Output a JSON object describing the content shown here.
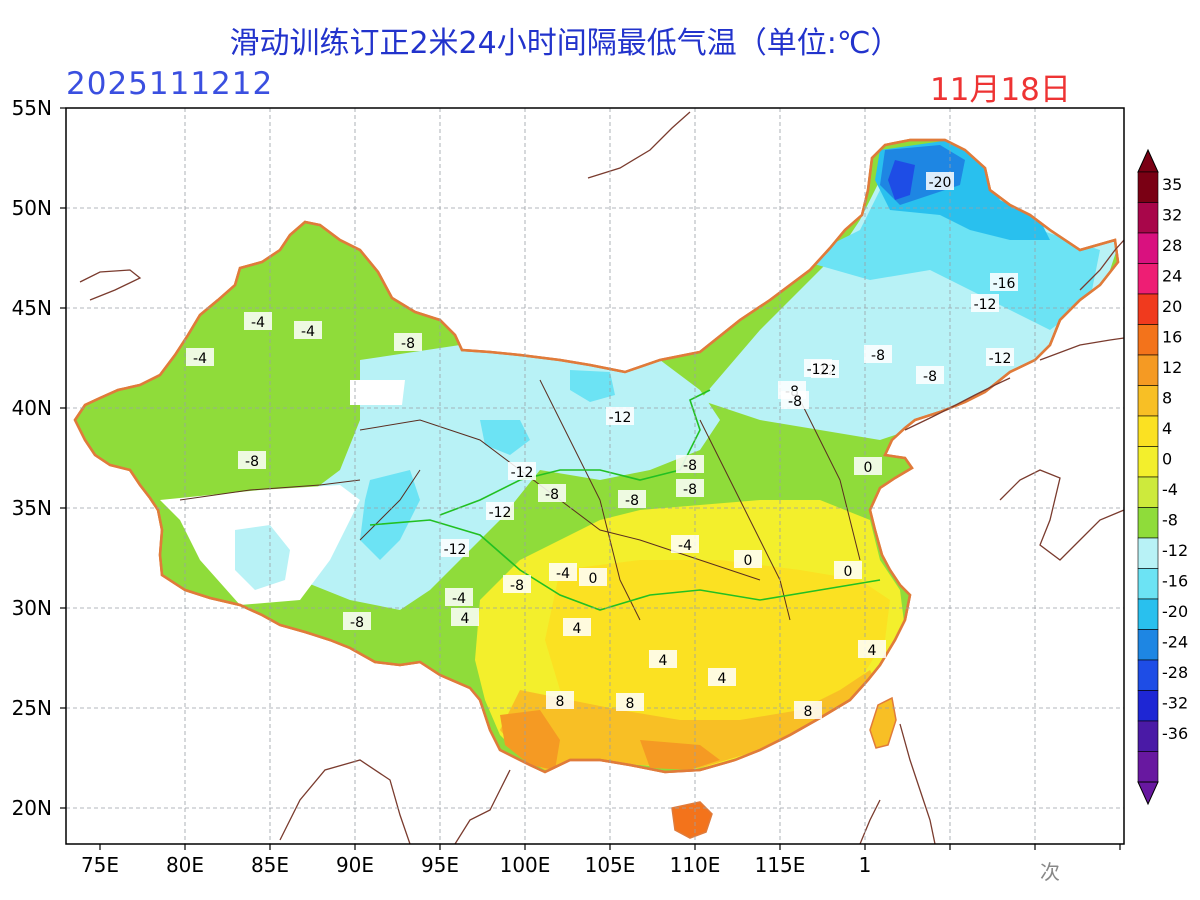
{
  "header": {
    "title": "滑动训练订正2米24小时间隔最低气温（单位:℃）",
    "run_id": "2025111212",
    "valid_date": "11月18日"
  },
  "axes": {
    "lat_labels": [
      "55N",
      "50N",
      "45N",
      "40N",
      "35N",
      "30N",
      "25N",
      "20N"
    ],
    "lon_labels": [
      "75E",
      "80E",
      "85E",
      "90E",
      "95E",
      "100E",
      "105E",
      "110E",
      "115E",
      "1"
    ]
  },
  "legend": {
    "labels": [
      "35",
      "32",
      "28",
      "24",
      "20",
      "16",
      "12",
      "8",
      "4",
      "0",
      "-4",
      "-8",
      "-12",
      "-16",
      "-20",
      "-24",
      "-28",
      "-32",
      "-36"
    ],
    "colors": [
      "#7a0014",
      "#a8064a",
      "#d9117f",
      "#ee1e74",
      "#f03a1e",
      "#f3731b",
      "#f59a23",
      "#f8bf25",
      "#fbe122",
      "#f3ef2c",
      "#cdea3c",
      "#8fdc3a",
      "#b8f2f6",
      "#6ce3f4",
      "#29c0ee",
      "#1e86e3",
      "#1e4de6",
      "#1e26d4",
      "#4a1aa6",
      "#6818a0"
    ]
  },
  "contour_labels": [
    "-20",
    "-16",
    "-12",
    "-12",
    "-8",
    "-8",
    "-12",
    "-8",
    "-4",
    "-4",
    "-4",
    "-8",
    "-8",
    "-12",
    "-12",
    "-12",
    "-8",
    "-8",
    "-8",
    "-12",
    "-4",
    "-4",
    "-8",
    "-4",
    "0",
    "4",
    "4",
    "4",
    "8",
    "8",
    "4",
    "8",
    "4",
    "-8",
    "-12",
    "-8",
    "-8",
    "0",
    "0",
    "0"
  ],
  "watermark": "次"
}
